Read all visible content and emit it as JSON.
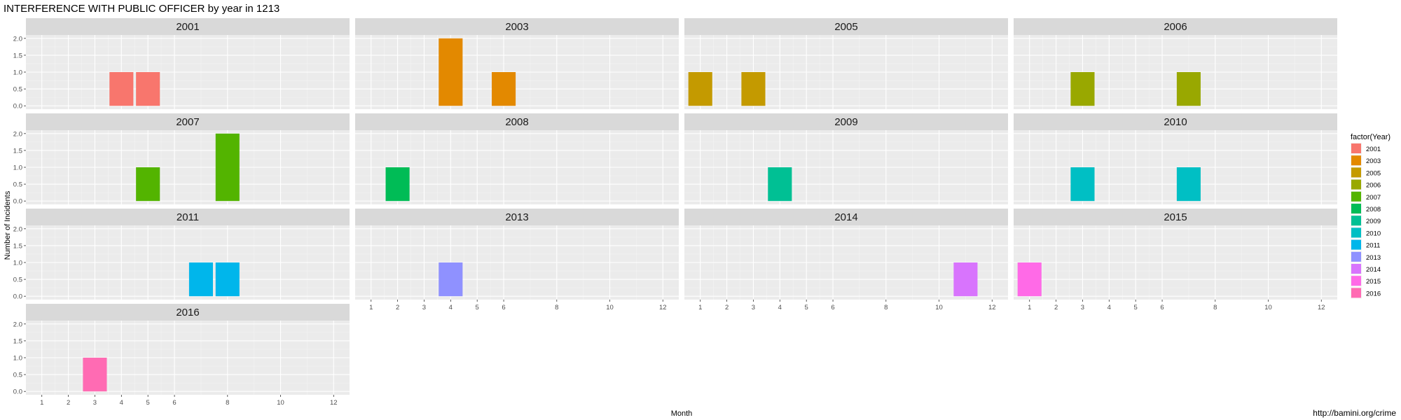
{
  "chart_data": {
    "type": "bar",
    "title": "INTERFERENCE WITH PUBLIC OFFICER by year in 1213",
    "xlabel": "Month",
    "ylabel": "Number of Incidents",
    "caption": "http://bamini.org/crime",
    "legend_title": "factor(Year)",
    "legend_position": "right",
    "x_ticks": [
      1,
      2,
      3,
      4,
      5,
      6,
      8,
      10,
      12
    ],
    "xlim": [
      0.4,
      12.6
    ],
    "y_ticks": [
      "0.0",
      "0.5",
      "1.0",
      "1.5",
      "2.0"
    ],
    "y_tick_values": [
      0,
      0.5,
      1.0,
      1.5,
      2.0
    ],
    "ylim": [
      -0.1,
      2.1
    ],
    "grid": true,
    "facets": [
      {
        "year": "2001",
        "color": "#F8766D",
        "bars": [
          {
            "month": 4,
            "value": 1
          },
          {
            "month": 5,
            "value": 1
          }
        ]
      },
      {
        "year": "2003",
        "color": "#E38900",
        "bars": [
          {
            "month": 4,
            "value": 2
          },
          {
            "month": 6,
            "value": 1
          }
        ]
      },
      {
        "year": "2005",
        "color": "#C49A00",
        "bars": [
          {
            "month": 1,
            "value": 1
          },
          {
            "month": 3,
            "value": 1
          }
        ]
      },
      {
        "year": "2006",
        "color": "#99A800",
        "bars": [
          {
            "month": 3,
            "value": 1
          },
          {
            "month": 7,
            "value": 1
          }
        ]
      },
      {
        "year": "2007",
        "color": "#53B400",
        "bars": [
          {
            "month": 5,
            "value": 1
          },
          {
            "month": 8,
            "value": 2
          }
        ]
      },
      {
        "year": "2008",
        "color": "#00BC56",
        "bars": [
          {
            "month": 2,
            "value": 1
          }
        ]
      },
      {
        "year": "2009",
        "color": "#00C094",
        "bars": [
          {
            "month": 4,
            "value": 1
          }
        ]
      },
      {
        "year": "2010",
        "color": "#00BFC4",
        "bars": [
          {
            "month": 3,
            "value": 1
          },
          {
            "month": 7,
            "value": 1
          }
        ]
      },
      {
        "year": "2011",
        "color": "#00B6EB",
        "bars": [
          {
            "month": 7,
            "value": 1
          },
          {
            "month": 8,
            "value": 1
          }
        ]
      },
      {
        "year": "2013",
        "color": "#8F91FF",
        "bars": [
          {
            "month": 4,
            "value": 1
          }
        ]
      },
      {
        "year": "2014",
        "color": "#D874FD",
        "bars": [
          {
            "month": 11,
            "value": 1
          }
        ]
      },
      {
        "year": "2015",
        "color": "#FF6AE7",
        "bars": [
          {
            "month": 1,
            "value": 1
          }
        ]
      },
      {
        "year": "2016",
        "color": "#FF6BB3",
        "bars": [
          {
            "month": 3,
            "value": 1
          }
        ]
      }
    ]
  }
}
